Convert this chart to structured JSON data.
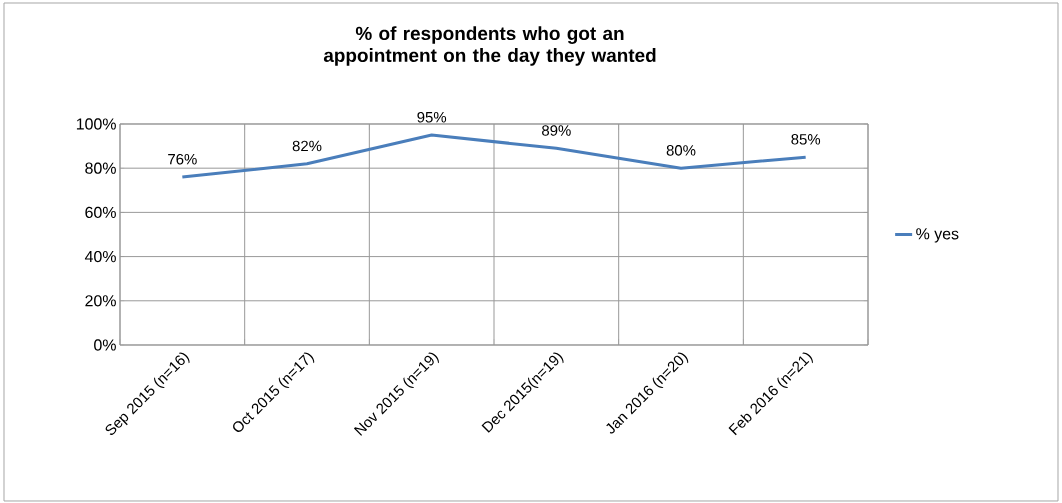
{
  "chart_data": {
    "type": "line",
    "title": "% of respondents who got an appointment on the day they wanted",
    "categories": [
      "Sep 2015 (n=16)",
      "Oct 2015 (n=17)",
      "Nov 2015 (n=19)",
      "Dec 2015(n=19)",
      "Jan 2016 (n=20)",
      "Feb 2016 (n=21)"
    ],
    "series": [
      {
        "name": "% yes",
        "color": "#4a7ebb",
        "values": [
          76,
          82,
          95,
          89,
          80,
          85
        ],
        "value_labels": [
          "76%",
          "82%",
          "95%",
          "89%",
          "80%",
          "85%"
        ]
      }
    ],
    "ylim": [
      0,
      100
    ],
    "yticks": [
      {
        "value": 0,
        "label": "0%"
      },
      {
        "value": 20,
        "label": "20%"
      },
      {
        "value": 40,
        "label": "40%"
      },
      {
        "value": 60,
        "label": "60%"
      },
      {
        "value": 80,
        "label": "80%"
      },
      {
        "value": 100,
        "label": "100%"
      }
    ],
    "grid": true,
    "legend": "right"
  }
}
